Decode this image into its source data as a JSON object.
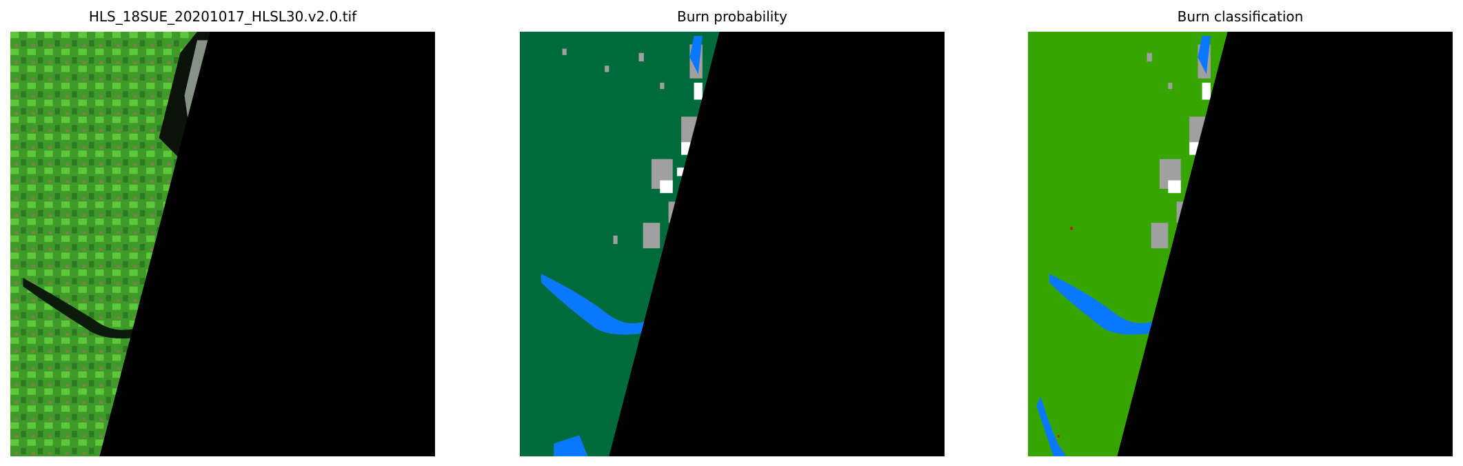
{
  "panels": [
    {
      "title": "HLS_18SUE_20201017_HLSL30.v2.0.tif",
      "kind": "rgb-image"
    },
    {
      "title": "Burn probability",
      "kind": "probability-map"
    },
    {
      "title": "Burn classification",
      "kind": "classification-map"
    }
  ],
  "colors": {
    "nodata": "#000000",
    "rgb_land": "#3f9a2a",
    "probability_background": "#006b3a",
    "classification_background": "#36a500",
    "water": "#0a78ff",
    "cloud": "#a0a0a0",
    "cloud_bright": "#ffffff",
    "burn": "#d01010"
  }
}
